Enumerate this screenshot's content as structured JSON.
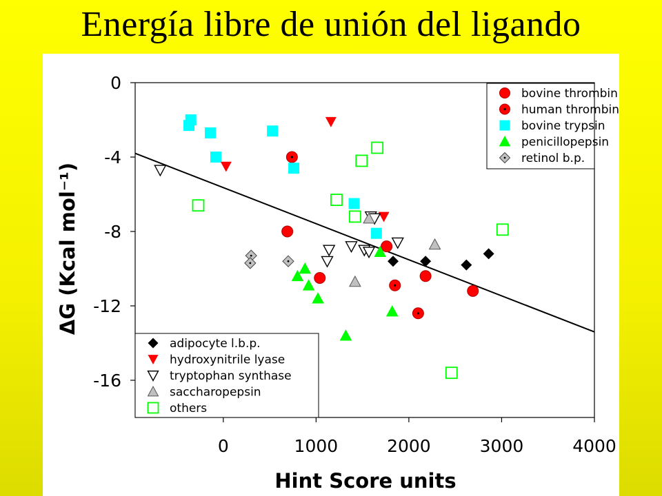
{
  "slide": {
    "title": "Energía libre de unión del ligando"
  },
  "chart_data": {
    "type": "scatter",
    "xlabel": "Hint Score units",
    "ylabel": "ΔG (Kcal mol⁻¹)",
    "xlim": [
      -950,
      4000
    ],
    "ylim": [
      -18,
      0
    ],
    "xticks": [
      0,
      1000,
      2000,
      3000,
      4000
    ],
    "yticks": [
      0,
      -4,
      -8,
      -12,
      -16
    ],
    "grid": false,
    "legend_placement": [
      "top-right",
      "bottom-left"
    ],
    "fit_line": {
      "type": "linear-regression",
      "points": [
        [
          -950,
          -3.8
        ],
        [
          4000,
          -13.4
        ]
      ]
    },
    "series": [
      {
        "name": "bovine thrombin",
        "marker": "circle",
        "color": "#ff0000",
        "legend": "top-right",
        "points": [
          [
            690,
            -8.0
          ],
          [
            1040,
            -10.5
          ],
          [
            1760,
            -8.8
          ],
          [
            2180,
            -10.4
          ],
          [
            2690,
            -11.2
          ]
        ]
      },
      {
        "name": "human thrombin",
        "marker": "circle-dot",
        "color": "#ff0000",
        "legend": "top-right",
        "points": [
          [
            740,
            -4.0
          ],
          [
            1850,
            -10.9
          ],
          [
            2100,
            -12.4
          ]
        ]
      },
      {
        "name": "bovine trypsin",
        "marker": "square",
        "color": "#00ffff",
        "legend": "top-right",
        "points": [
          [
            -350,
            -2.0
          ],
          [
            -370,
            -2.3
          ],
          [
            -140,
            -2.7
          ],
          [
            -80,
            -4.0
          ],
          [
            530,
            -2.6
          ],
          [
            760,
            -4.6
          ],
          [
            1410,
            -6.5
          ],
          [
            1650,
            -8.1
          ]
        ]
      },
      {
        "name": "penicillopepsin",
        "marker": "triangle-up",
        "color": "#00ff00",
        "legend": "top-right",
        "points": [
          [
            800,
            -10.4
          ],
          [
            880,
            -10.0
          ],
          [
            920,
            -10.9
          ],
          [
            1020,
            -11.6
          ],
          [
            1320,
            -13.6
          ],
          [
            1690,
            -9.1
          ],
          [
            1820,
            -12.3
          ]
        ]
      },
      {
        "name": "retinol b.p.",
        "marker": "diamond-dot",
        "color": "#c0c0c0",
        "legend": "top-right",
        "points": [
          [
            300,
            -9.3
          ],
          [
            290,
            -9.7
          ],
          [
            700,
            -9.6
          ]
        ]
      },
      {
        "name": "adipocyte l.b.p.",
        "marker": "diamond",
        "color": "#000000",
        "legend": "bottom-left",
        "points": [
          [
            1830,
            -9.6
          ],
          [
            2180,
            -9.6
          ],
          [
            2620,
            -9.8
          ],
          [
            2860,
            -9.2
          ]
        ]
      },
      {
        "name": "hydroxynitrile lyase",
        "marker": "triangle-down",
        "color": "#ff0000",
        "legend": "bottom-left",
        "points": [
          [
            30,
            -4.5
          ],
          [
            1160,
            -2.1
          ],
          [
            1730,
            -7.2
          ]
        ]
      },
      {
        "name": "tryptophan synthase",
        "marker": "triangle-down-open",
        "color": "#000000",
        "legend": "bottom-left",
        "points": [
          [
            -680,
            -4.7
          ],
          [
            1140,
            -9.0
          ],
          [
            1120,
            -9.6
          ],
          [
            1380,
            -8.8
          ],
          [
            1520,
            -9.0
          ],
          [
            1590,
            -7.2
          ],
          [
            1630,
            -7.3
          ],
          [
            1570,
            -9.1
          ],
          [
            1880,
            -8.6
          ]
        ]
      },
      {
        "name": "saccharopepsin",
        "marker": "triangle-up",
        "color": "#c0c0c0",
        "legend": "bottom-left",
        "points": [
          [
            1420,
            -10.7
          ],
          [
            1570,
            -7.3
          ],
          [
            2280,
            -8.7
          ]
        ]
      },
      {
        "name": "others",
        "marker": "square-open",
        "color": "#00ff00",
        "legend": "bottom-left",
        "points": [
          [
            -270,
            -6.6
          ],
          [
            1220,
            -6.3
          ],
          [
            1420,
            -7.2
          ],
          [
            1490,
            -4.2
          ],
          [
            1660,
            -3.5
          ],
          [
            2460,
            -15.6
          ],
          [
            3010,
            -7.9
          ]
        ]
      }
    ]
  }
}
